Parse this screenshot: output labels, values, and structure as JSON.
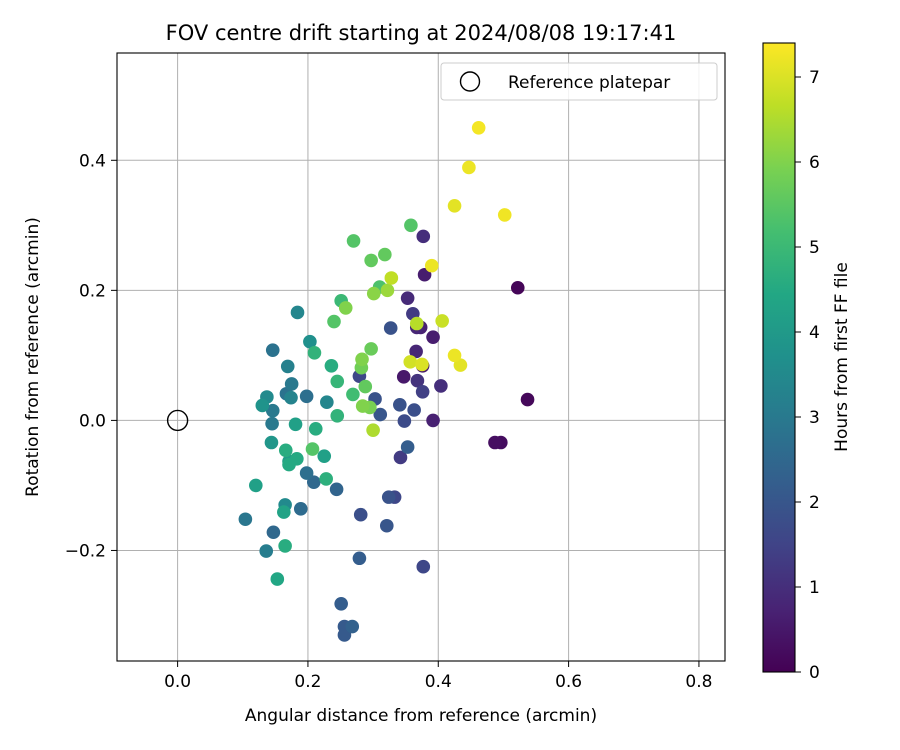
{
  "chart_data": {
    "type": "scatter",
    "title": "FOV centre drift starting at 2024/08/08 19:17:41",
    "xlabel": "Angular distance from reference (arcmin)",
    "ylabel": "Rotation from reference (arcmin)",
    "xlim": [
      -0.093,
      0.84
    ],
    "ylim": [
      -0.37,
      0.565
    ],
    "xticks": [
      0.0,
      0.2,
      0.4,
      0.6,
      0.8
    ],
    "xtick_labels": [
      "0.0",
      "0.2",
      "0.4",
      "0.6",
      "0.8"
    ],
    "yticks": [
      -0.2,
      0.0,
      0.2,
      0.4
    ],
    "ytick_labels": [
      "−0.2",
      "0.0",
      "0.2",
      "0.4"
    ],
    "grid": true,
    "legend": {
      "position": "top-right",
      "entries": [
        "Reference platepar"
      ]
    },
    "reference_point": {
      "label": "Reference platepar",
      "x": 0.0,
      "y": 0.0,
      "marker": "open-circle"
    },
    "colorbar": {
      "label": "Hours from first FF file",
      "colormap": "viridis",
      "range": [
        0,
        7.4
      ],
      "ticks": [
        0,
        1,
        2,
        3,
        4,
        5,
        6,
        7
      ],
      "tick_labels": [
        "0",
        "1",
        "2",
        "3",
        "4",
        "5",
        "6",
        "7"
      ]
    },
    "points": [
      {
        "x": 0.522,
        "y": 0.204,
        "h": 0.1
      },
      {
        "x": 0.537,
        "y": 0.032,
        "h": 0.15
      },
      {
        "x": 0.496,
        "y": -0.034,
        "h": 0.25
      },
      {
        "x": 0.487,
        "y": -0.034,
        "h": 0.3
      },
      {
        "x": 0.377,
        "y": 0.283,
        "h": 1.0
      },
      {
        "x": 0.379,
        "y": 0.224,
        "h": 0.6
      },
      {
        "x": 0.353,
        "y": 0.188,
        "h": 0.9
      },
      {
        "x": 0.361,
        "y": 0.164,
        "h": 1.3
      },
      {
        "x": 0.367,
        "y": 0.143,
        "h": 0.8
      },
      {
        "x": 0.373,
        "y": 0.143,
        "h": 0.7
      },
      {
        "x": 0.392,
        "y": 0.128,
        "h": 0.6
      },
      {
        "x": 0.366,
        "y": 0.106,
        "h": 0.8
      },
      {
        "x": 0.376,
        "y": 0.084,
        "h": 0.5
      },
      {
        "x": 0.347,
        "y": 0.067,
        "h": 0.5
      },
      {
        "x": 0.368,
        "y": 0.061,
        "h": 1.1
      },
      {
        "x": 0.404,
        "y": 0.053,
        "h": 1.0
      },
      {
        "x": 0.376,
        "y": 0.044,
        "h": 1.4
      },
      {
        "x": 0.341,
        "y": 0.024,
        "h": 1.9
      },
      {
        "x": 0.363,
        "y": 0.016,
        "h": 1.8
      },
      {
        "x": 0.303,
        "y": 0.033,
        "h": 1.9
      },
      {
        "x": 0.311,
        "y": 0.009,
        "h": 2.0
      },
      {
        "x": 0.348,
        "y": -0.001,
        "h": 1.7
      },
      {
        "x": 0.392,
        "y": 0.0,
        "h": 0.7
      },
      {
        "x": 0.353,
        "y": -0.041,
        "h": 2.2
      },
      {
        "x": 0.342,
        "y": -0.057,
        "h": 1.3
      },
      {
        "x": 0.279,
        "y": 0.068,
        "h": 1.6
      },
      {
        "x": 0.327,
        "y": 0.142,
        "h": 1.9
      },
      {
        "x": 0.324,
        "y": -0.118,
        "h": 1.9
      },
      {
        "x": 0.333,
        "y": -0.118,
        "h": 1.6
      },
      {
        "x": 0.281,
        "y": -0.145,
        "h": 1.8
      },
      {
        "x": 0.321,
        "y": -0.162,
        "h": 2.0
      },
      {
        "x": 0.377,
        "y": -0.225,
        "h": 1.6
      },
      {
        "x": 0.279,
        "y": -0.212,
        "h": 2.2
      },
      {
        "x": 0.251,
        "y": -0.282,
        "h": 2.2
      },
      {
        "x": 0.256,
        "y": -0.317,
        "h": 2.1
      },
      {
        "x": 0.268,
        "y": -0.317,
        "h": 2.3
      },
      {
        "x": 0.256,
        "y": -0.33,
        "h": 2.1
      },
      {
        "x": 0.244,
        "y": -0.106,
        "h": 2.4
      },
      {
        "x": 0.209,
        "y": -0.095,
        "h": 2.5
      },
      {
        "x": 0.198,
        "y": -0.081,
        "h": 2.7
      },
      {
        "x": 0.189,
        "y": -0.136,
        "h": 2.6
      },
      {
        "x": 0.147,
        "y": -0.172,
        "h": 2.5
      },
      {
        "x": 0.104,
        "y": -0.152,
        "h": 2.9
      },
      {
        "x": 0.136,
        "y": -0.201,
        "h": 3.1
      },
      {
        "x": 0.198,
        "y": 0.037,
        "h": 2.7
      },
      {
        "x": 0.167,
        "y": 0.041,
        "h": 2.8
      },
      {
        "x": 0.175,
        "y": 0.056,
        "h": 3.0
      },
      {
        "x": 0.174,
        "y": 0.035,
        "h": 3.3
      },
      {
        "x": 0.146,
        "y": 0.015,
        "h": 3.0
      },
      {
        "x": 0.145,
        "y": -0.005,
        "h": 3.0
      },
      {
        "x": 0.169,
        "y": 0.083,
        "h": 3.2
      },
      {
        "x": 0.146,
        "y": 0.108,
        "h": 2.8
      },
      {
        "x": 0.184,
        "y": 0.166,
        "h": 3.4
      },
      {
        "x": 0.203,
        "y": 0.121,
        "h": 3.7
      },
      {
        "x": 0.229,
        "y": 0.028,
        "h": 3.4
      },
      {
        "x": 0.137,
        "y": 0.036,
        "h": 3.5
      },
      {
        "x": 0.13,
        "y": 0.023,
        "h": 3.8
      },
      {
        "x": 0.144,
        "y": -0.034,
        "h": 3.9
      },
      {
        "x": 0.181,
        "y": -0.006,
        "h": 4.2
      },
      {
        "x": 0.165,
        "y": -0.13,
        "h": 3.5
      },
      {
        "x": 0.163,
        "y": -0.141,
        "h": 4.3
      },
      {
        "x": 0.165,
        "y": -0.193,
        "h": 4.6
      },
      {
        "x": 0.153,
        "y": -0.244,
        "h": 4.4
      },
      {
        "x": 0.12,
        "y": -0.1,
        "h": 4.2
      },
      {
        "x": 0.171,
        "y": -0.063,
        "h": 4.1
      },
      {
        "x": 0.171,
        "y": -0.068,
        "h": 4.5
      },
      {
        "x": 0.183,
        "y": -0.059,
        "h": 4.5
      },
      {
        "x": 0.166,
        "y": -0.046,
        "h": 4.6
      },
      {
        "x": 0.225,
        "y": -0.055,
        "h": 4.2
      },
      {
        "x": 0.228,
        "y": -0.09,
        "h": 4.7
      },
      {
        "x": 0.212,
        "y": -0.013,
        "h": 4.6
      },
      {
        "x": 0.207,
        "y": -0.044,
        "h": 5.4
      },
      {
        "x": 0.21,
        "y": 0.104,
        "h": 4.8
      },
      {
        "x": 0.236,
        "y": 0.084,
        "h": 4.6
      },
      {
        "x": 0.245,
        "y": 0.06,
        "h": 4.9
      },
      {
        "x": 0.245,
        "y": 0.007,
        "h": 4.8
      },
      {
        "x": 0.269,
        "y": 0.04,
        "h": 5.1
      },
      {
        "x": 0.251,
        "y": 0.184,
        "h": 5.0
      },
      {
        "x": 0.24,
        "y": 0.152,
        "h": 5.4
      },
      {
        "x": 0.258,
        "y": 0.173,
        "h": 6.0
      },
      {
        "x": 0.27,
        "y": 0.276,
        "h": 5.4
      },
      {
        "x": 0.297,
        "y": 0.246,
        "h": 5.6
      },
      {
        "x": 0.318,
        "y": 0.255,
        "h": 5.6
      },
      {
        "x": 0.358,
        "y": 0.3,
        "h": 5.4
      },
      {
        "x": 0.31,
        "y": 0.205,
        "h": 5.3
      },
      {
        "x": 0.301,
        "y": 0.195,
        "h": 6.1
      },
      {
        "x": 0.322,
        "y": 0.2,
        "h": 6.3
      },
      {
        "x": 0.328,
        "y": 0.219,
        "h": 6.7
      },
      {
        "x": 0.283,
        "y": 0.094,
        "h": 6.0
      },
      {
        "x": 0.282,
        "y": 0.081,
        "h": 5.8
      },
      {
        "x": 0.297,
        "y": 0.11,
        "h": 5.7
      },
      {
        "x": 0.288,
        "y": 0.052,
        "h": 5.6
      },
      {
        "x": 0.284,
        "y": 0.022,
        "h": 6.0
      },
      {
        "x": 0.295,
        "y": 0.02,
        "h": 5.9
      },
      {
        "x": 0.3,
        "y": -0.015,
        "h": 6.5
      },
      {
        "x": 0.357,
        "y": 0.09,
        "h": 6.9
      },
      {
        "x": 0.375,
        "y": 0.086,
        "h": 7.0
      },
      {
        "x": 0.367,
        "y": 0.149,
        "h": 6.6
      },
      {
        "x": 0.406,
        "y": 0.153,
        "h": 6.8
      },
      {
        "x": 0.39,
        "y": 0.238,
        "h": 7.2
      },
      {
        "x": 0.425,
        "y": 0.1,
        "h": 7.2
      },
      {
        "x": 0.434,
        "y": 0.085,
        "h": 7.1
      },
      {
        "x": 0.425,
        "y": 0.33,
        "h": 7.1
      },
      {
        "x": 0.447,
        "y": 0.389,
        "h": 7.2
      },
      {
        "x": 0.502,
        "y": 0.316,
        "h": 7.25
      },
      {
        "x": 0.462,
        "y": 0.45,
        "h": 7.3
      }
    ]
  }
}
